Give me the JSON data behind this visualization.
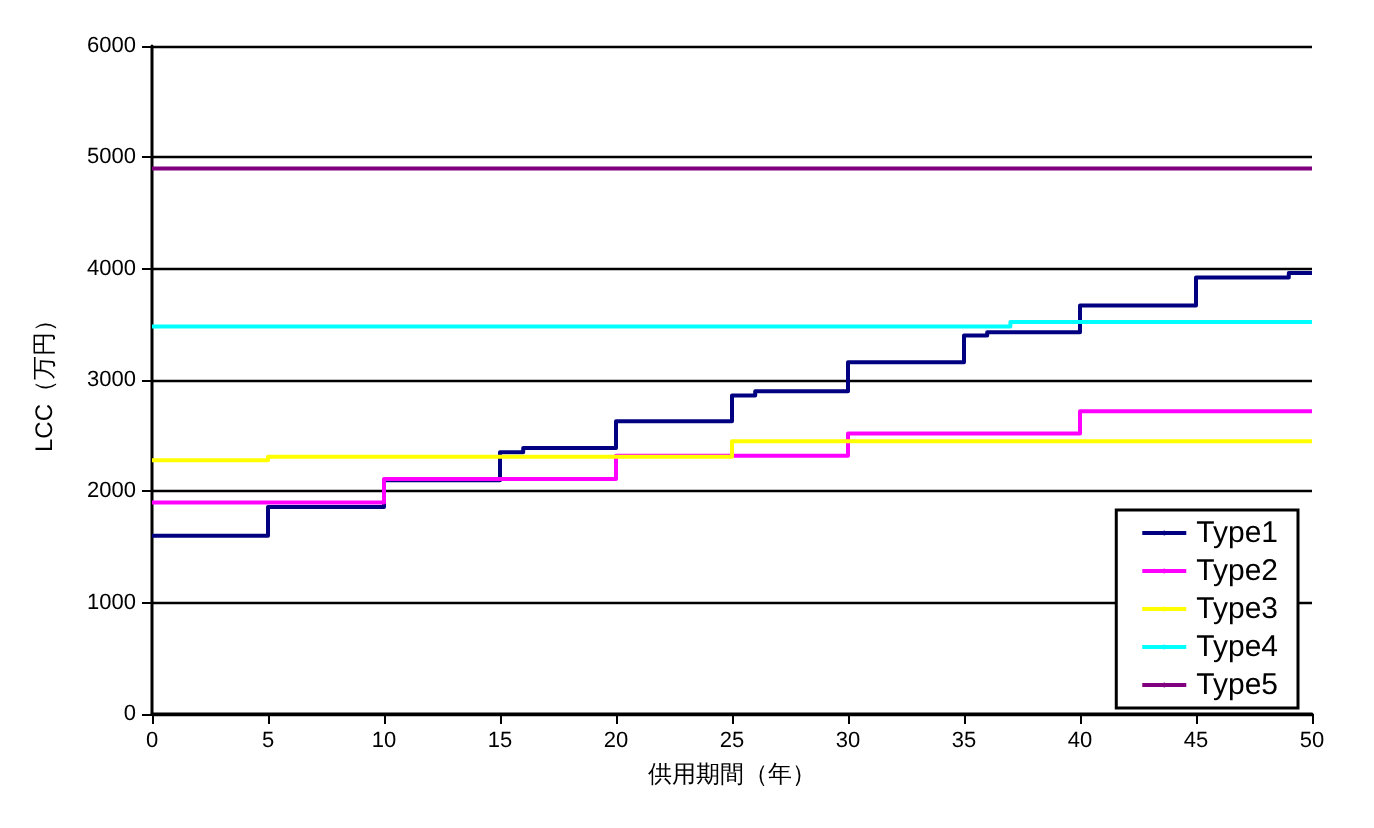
{
  "chart_data": {
    "type": "step",
    "xlabel": "供用期間（年）",
    "ylabel": "LCC（万円）",
    "xlim": [
      0,
      50
    ],
    "xticks": [
      0,
      5,
      10,
      15,
      20,
      25,
      30,
      35,
      40,
      45,
      50
    ],
    "ylim": [
      0,
      6000
    ],
    "yticks": [
      0,
      1000,
      2000,
      3000,
      4000,
      5000,
      6000
    ],
    "grid": "y",
    "legend": "bottom right",
    "marker": "none",
    "line_style": "solid",
    "series": [
      {
        "name": "Type1",
        "color": "#000080",
        "x": [
          0,
          5,
          10,
          15,
          16,
          20,
          25,
          26,
          30,
          35,
          36,
          40,
          45,
          49,
          50
        ],
        "values": [
          1600,
          1860,
          2100,
          2350,
          2390,
          2630,
          2860,
          2900,
          3160,
          3400,
          3430,
          3670,
          3920,
          3960,
          3960
        ]
      },
      {
        "name": "Type2",
        "color": "#ff00ff",
        "x": [
          0,
          10,
          20,
          30,
          40,
          50
        ],
        "values": [
          1900,
          2110,
          2320,
          2520,
          2720,
          2720
        ]
      },
      {
        "name": "Type3",
        "color": "#ffff00",
        "x": [
          0,
          5,
          25,
          50
        ],
        "values": [
          2280,
          2310,
          2450,
          2450
        ]
      },
      {
        "name": "Type4",
        "color": "#00ffff",
        "x": [
          0,
          37,
          50
        ],
        "values": [
          3480,
          3520,
          3520
        ]
      },
      {
        "name": "Type5",
        "color": "#800080",
        "x": [
          0,
          50
        ],
        "values": [
          4900,
          4900
        ]
      }
    ]
  }
}
